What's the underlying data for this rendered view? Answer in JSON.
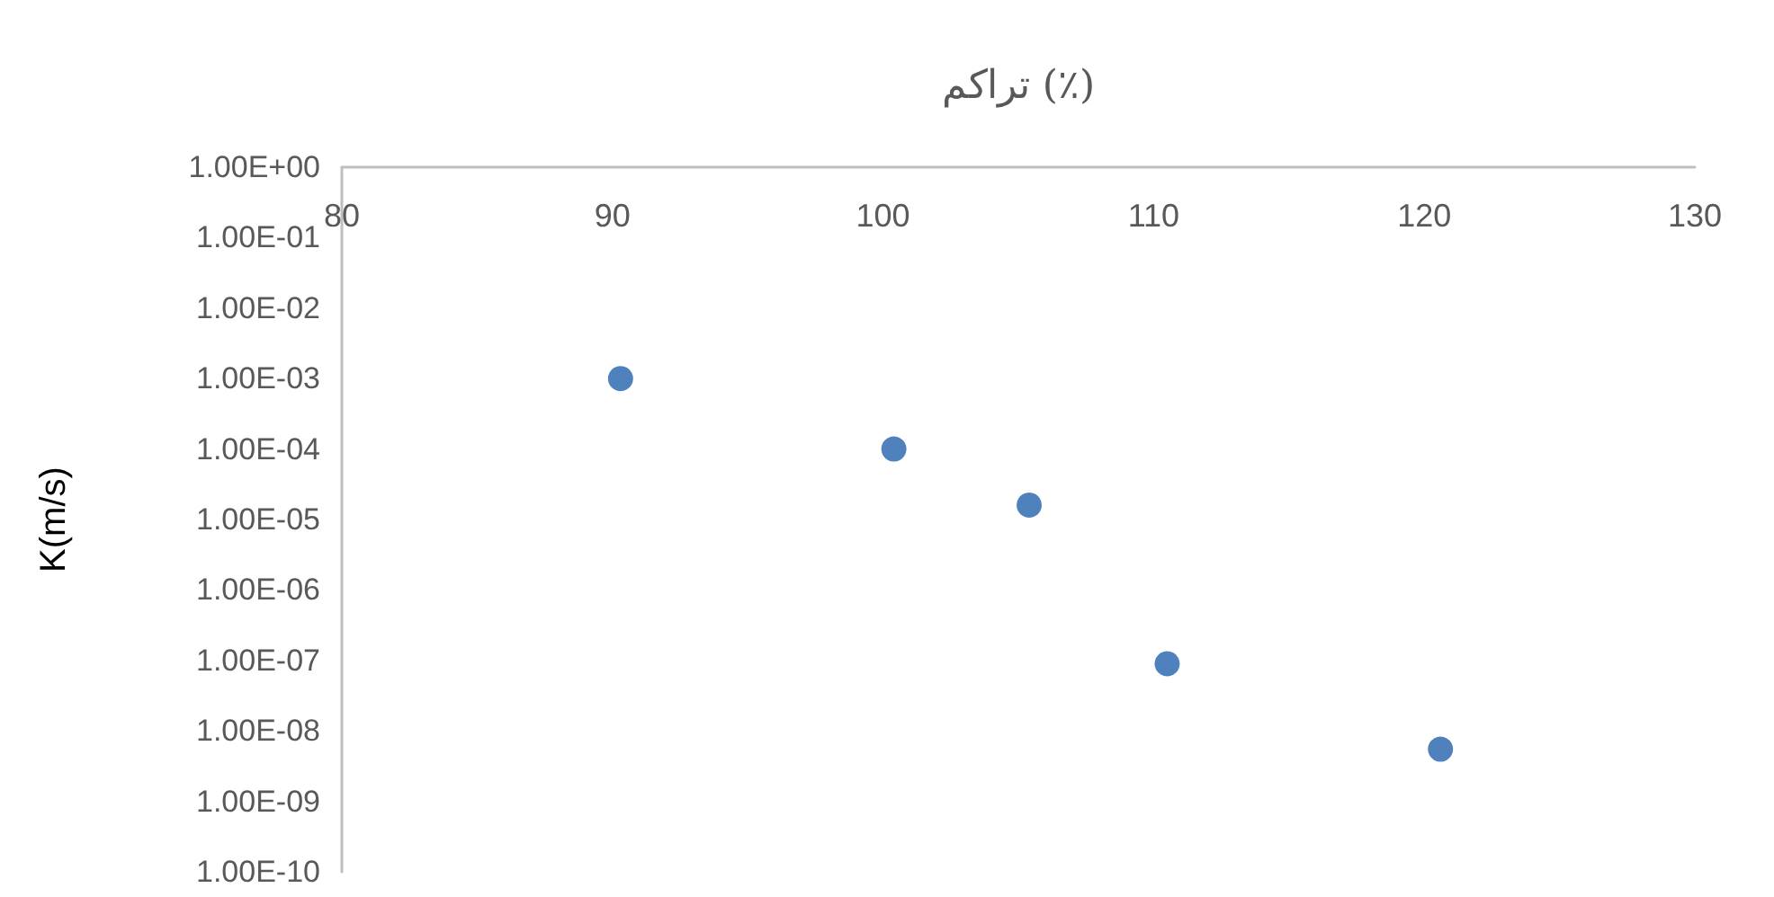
{
  "chart_data": {
    "type": "scatter",
    "xlabel": "تراکم (٪)",
    "ylabel": "K(m/s)",
    "x": [
      90.3,
      100.4,
      105.4,
      110.5,
      120.6
    ],
    "series": [
      {
        "color": "#4f81bd",
        "values": [
          0.001,
          0.0001,
          1.6e-05,
          9e-08,
          5.5e-09
        ]
      }
    ],
    "xlim": [
      80,
      130
    ],
    "xticks": [
      80,
      90,
      100,
      110,
      120,
      130
    ],
    "ylim": [
      1e-10,
      1
    ],
    "log": "y",
    "yticks": [
      {
        "value": 1,
        "label": "1.00E+00"
      },
      {
        "value": 0.1,
        "label": "1.00E-01"
      },
      {
        "value": 0.01,
        "label": "1.00E-02"
      },
      {
        "value": 0.001,
        "label": "1.00E-03"
      },
      {
        "value": 0.0001,
        "label": "1.00E-04"
      },
      {
        "value": 1e-05,
        "label": "1.00E-05"
      },
      {
        "value": 1e-06,
        "label": "1.00E-06"
      },
      {
        "value": 1e-07,
        "label": "1.00E-07"
      },
      {
        "value": 1e-08,
        "label": "1.00E-08"
      },
      {
        "value": 1e-09,
        "label": "1.00E-09"
      },
      {
        "value": 1e-10,
        "label": "1.00E-10"
      }
    ],
    "grid": false,
    "marker": "circle"
  }
}
